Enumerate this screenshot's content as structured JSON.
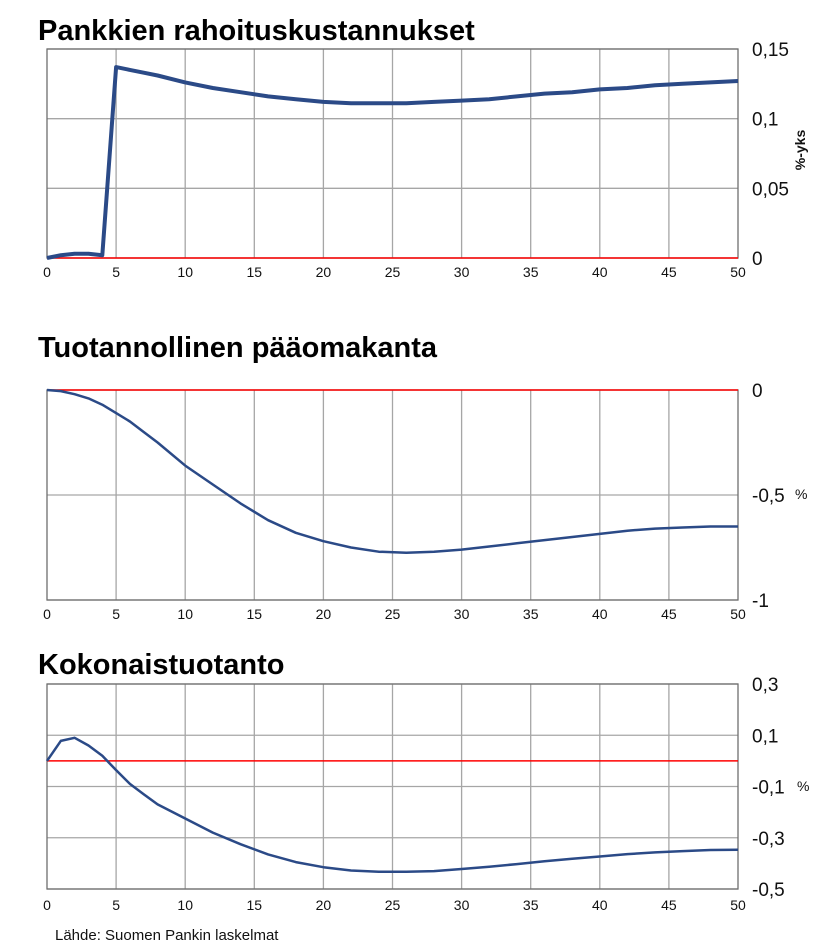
{
  "source": "Lähde: Suomen Pankin laskelmat",
  "colors": {
    "line": "#2b4a87",
    "zero": "#ff0000",
    "grid": "#a6a6a6",
    "frame": "#6e6e6e"
  },
  "chart_data": [
    {
      "type": "line",
      "title": "Pankkien rahoituskustannukset",
      "ylabel": "%-yks",
      "xlim": [
        0,
        50
      ],
      "ylim": [
        0,
        0.15
      ],
      "xticks": [
        "0",
        "5",
        "10",
        "15",
        "20",
        "25",
        "30",
        "35",
        "40",
        "45",
        "50"
      ],
      "yticks": [
        {
          "v": 0.15,
          "label": "0,15"
        },
        {
          "v": 0.1,
          "label": "0,1"
        },
        {
          "v": 0.05,
          "label": "0,05"
        },
        {
          "v": 0,
          "label": "0"
        }
      ],
      "grid": true,
      "x": [
        0,
        1,
        2,
        3,
        4,
        5,
        6,
        7,
        8,
        10,
        12,
        14,
        16,
        18,
        20,
        22,
        24,
        26,
        28,
        30,
        32,
        34,
        36,
        38,
        40,
        42,
        44,
        46,
        48,
        50
      ],
      "values": [
        0,
        0.002,
        0.003,
        0.003,
        0.002,
        0.137,
        0.135,
        0.133,
        0.131,
        0.126,
        0.122,
        0.119,
        0.116,
        0.114,
        0.112,
        0.111,
        0.111,
        0.111,
        0.112,
        0.113,
        0.114,
        0.116,
        0.118,
        0.119,
        0.121,
        0.122,
        0.124,
        0.125,
        0.126,
        0.127
      ]
    },
    {
      "type": "line",
      "title": "Tuotannollinen pääomakanta",
      "ylabel": "%",
      "xlim": [
        0,
        50
      ],
      "ylim": [
        -1,
        0
      ],
      "xticks": [
        "0",
        "5",
        "10",
        "15",
        "20",
        "25",
        "30",
        "35",
        "40",
        "45",
        "50"
      ],
      "yticks": [
        {
          "v": 0,
          "label": "0"
        },
        {
          "v": -0.5,
          "label": "-0,5"
        },
        {
          "v": -1,
          "label": "-1"
        }
      ],
      "grid": true,
      "x": [
        0,
        1,
        2,
        3,
        4,
        5,
        6,
        7,
        8,
        10,
        12,
        14,
        16,
        18,
        20,
        22,
        24,
        26,
        28,
        30,
        32,
        34,
        36,
        38,
        40,
        42,
        44,
        46,
        48,
        50
      ],
      "values": [
        0,
        -0.005,
        -0.02,
        -0.04,
        -0.07,
        -0.11,
        -0.15,
        -0.2,
        -0.25,
        -0.36,
        -0.45,
        -0.54,
        -0.62,
        -0.68,
        -0.72,
        -0.75,
        -0.77,
        -0.775,
        -0.77,
        -0.76,
        -0.745,
        -0.73,
        -0.715,
        -0.7,
        -0.685,
        -0.67,
        -0.66,
        -0.655,
        -0.65,
        -0.65
      ]
    },
    {
      "type": "line",
      "title": "Kokonaistuotanto",
      "ylabel": "%",
      "xlim": [
        0,
        50
      ],
      "ylim": [
        -0.5,
        0.3
      ],
      "xticks": [
        "0",
        "5",
        "10",
        "15",
        "20",
        "25",
        "30",
        "35",
        "40",
        "45",
        "50"
      ],
      "yticks": [
        {
          "v": 0.3,
          "label": "0,3"
        },
        {
          "v": 0.1,
          "label": "0,1"
        },
        {
          "v": -0.1,
          "label": "-0,1"
        },
        {
          "v": -0.3,
          "label": "-0,3"
        },
        {
          "v": -0.5,
          "label": "-0,5"
        }
      ],
      "grid": true,
      "x": [
        0,
        1,
        2,
        3,
        4,
        5,
        6,
        7,
        8,
        10,
        12,
        14,
        16,
        18,
        20,
        22,
        24,
        26,
        28,
        30,
        32,
        34,
        36,
        38,
        40,
        42,
        44,
        46,
        48,
        50
      ],
      "values": [
        0,
        0.078,
        0.09,
        0.06,
        0.02,
        -0.036,
        -0.09,
        -0.13,
        -0.17,
        -0.225,
        -0.28,
        -0.325,
        -0.365,
        -0.395,
        -0.415,
        -0.428,
        -0.433,
        -0.433,
        -0.43,
        -0.422,
        -0.413,
        -0.403,
        -0.392,
        -0.382,
        -0.373,
        -0.364,
        -0.357,
        -0.352,
        -0.348,
        -0.347
      ]
    }
  ]
}
